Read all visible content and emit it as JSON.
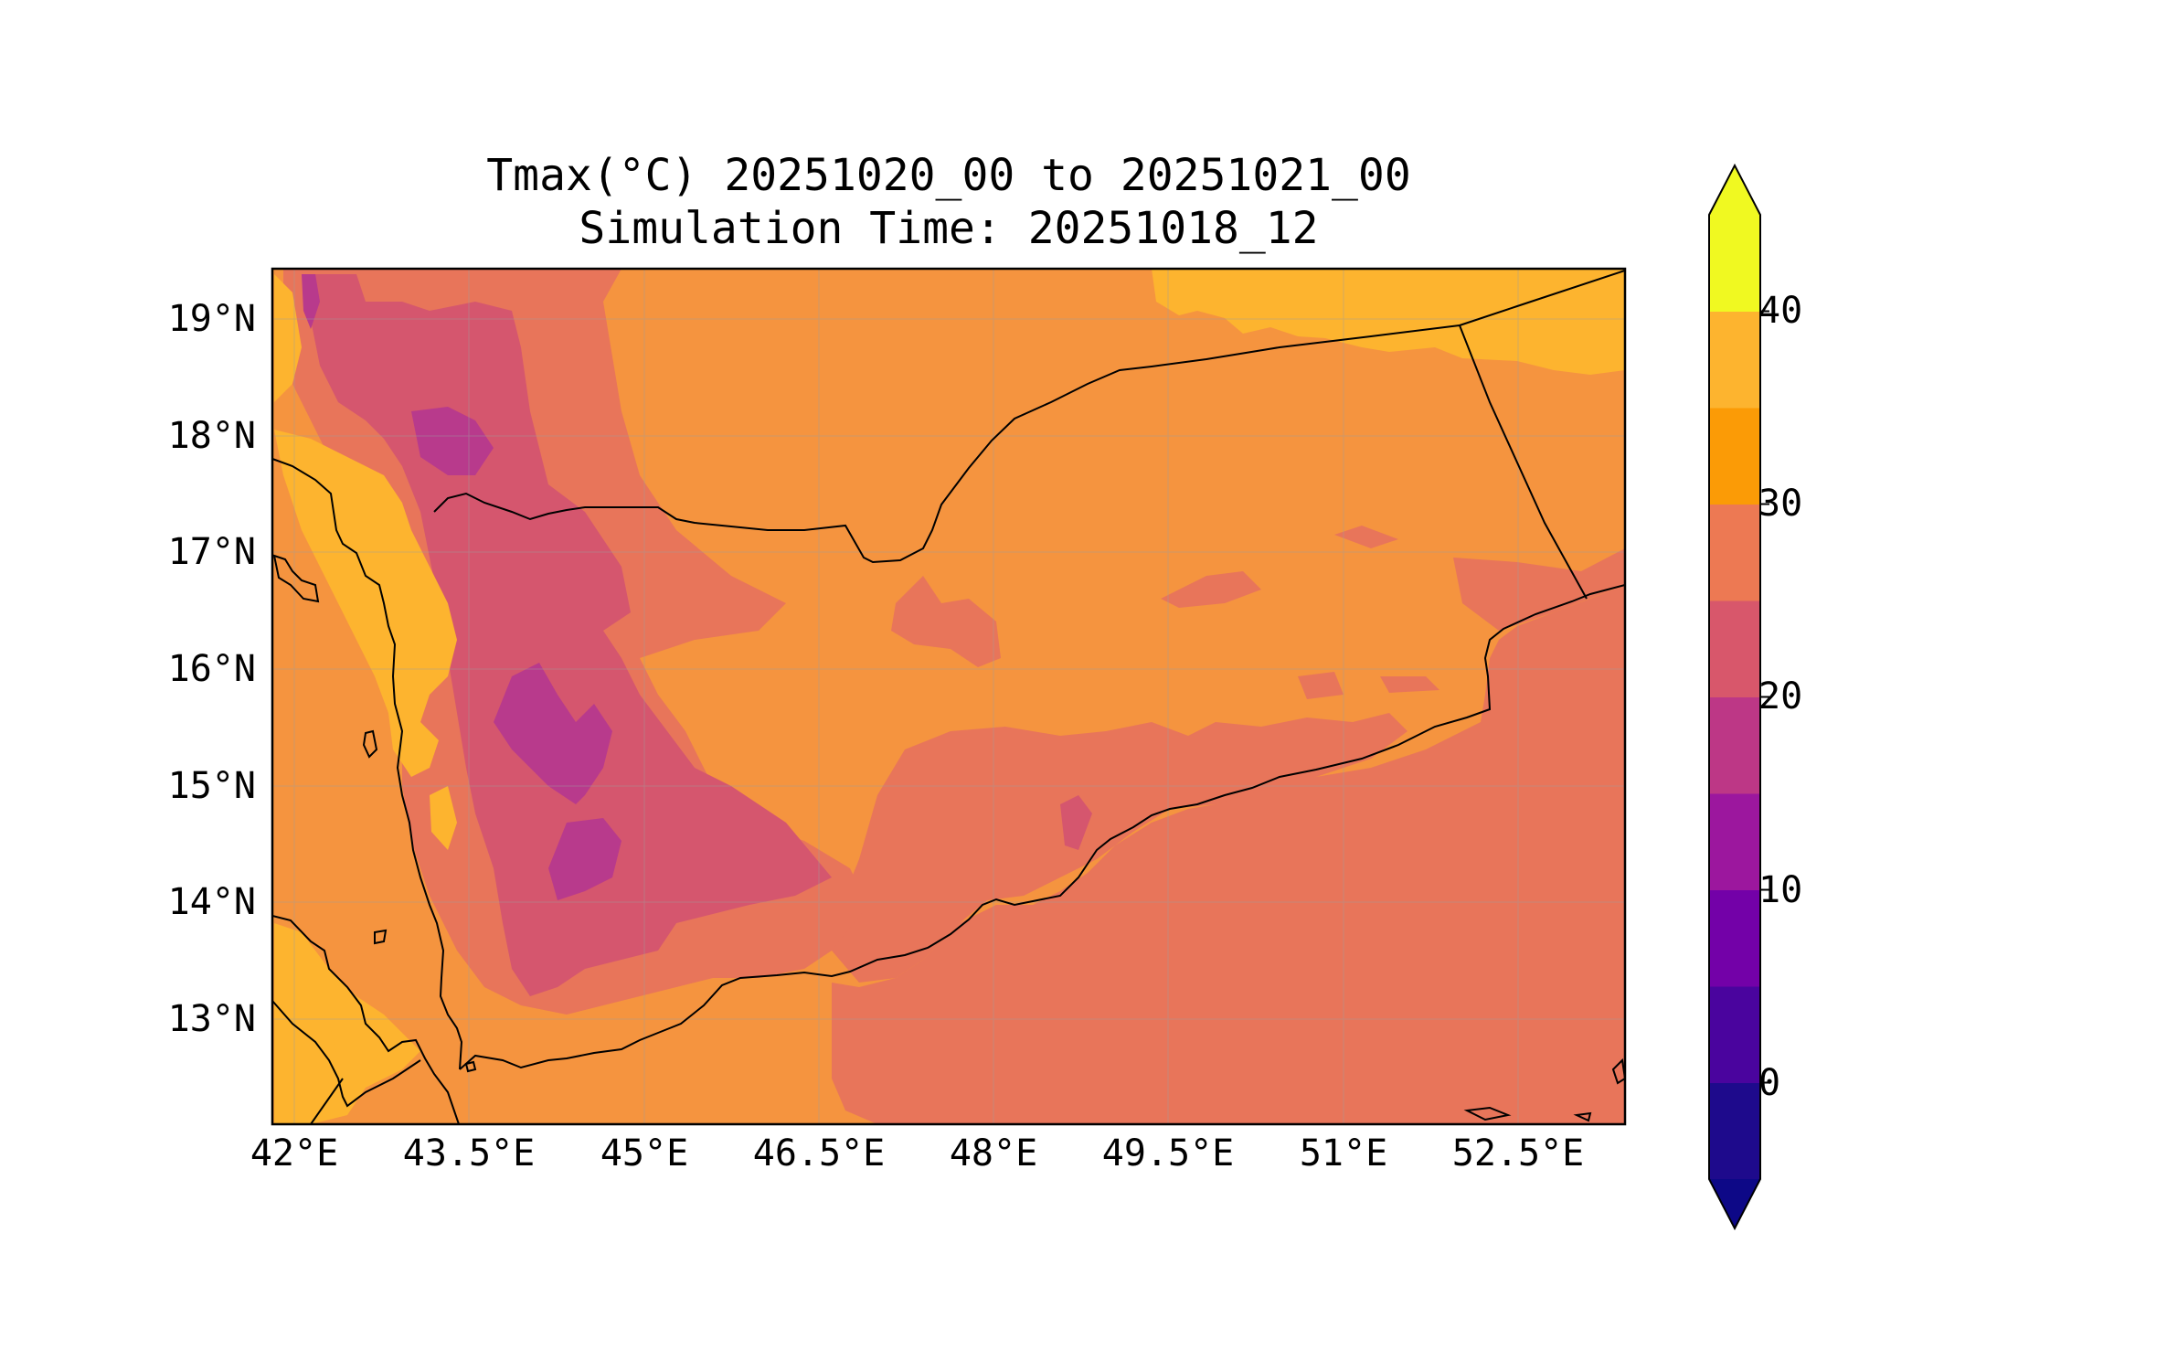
{
  "title": {
    "line1": "Tmax(°C) 20251020_00 to 20251021_00",
    "line2": "Simulation Time: 20251018_12"
  },
  "map": {
    "lon_range": [
      42.0,
      53.6
    ],
    "lat_range": [
      12.1,
      19.45
    ],
    "lat_ticks": [
      "19°N",
      "18°N",
      "17°N",
      "16°N",
      "15°N",
      "14°N",
      "13°N"
    ],
    "lon_ticks": [
      "42°E",
      "43.5°E",
      "45°E",
      "46.5°E",
      "48°E",
      "49.5°E",
      "51°E",
      "52.5°E"
    ],
    "gridlines": true,
    "background_color": "#f5943f"
  },
  "colorbar": {
    "labels": [
      "0",
      "10",
      "20",
      "30",
      "40"
    ],
    "levels": [
      -5,
      0,
      5,
      10,
      15,
      20,
      25,
      30,
      35,
      40,
      45
    ],
    "extend": "both",
    "colors": [
      "#1e0a8c",
      "#4a049e",
      "#7301a8",
      "#9c179e",
      "#bd3786",
      "#d8576b",
      "#ed7953",
      "#fb9b06",
      "#fdb42f",
      "#f0f921"
    ],
    "under_color": "#0d0887",
    "over_color": "#f0f921"
  }
}
